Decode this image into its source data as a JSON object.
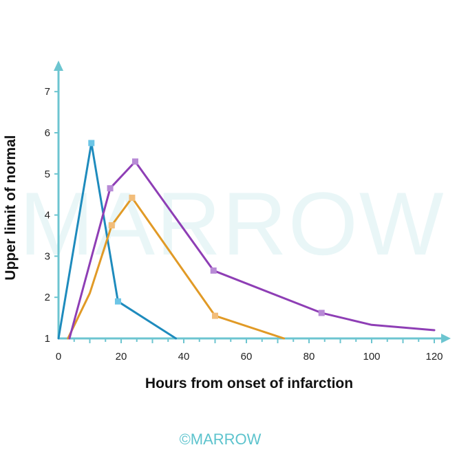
{
  "watermark": "MARROW",
  "footer_logo": "©MARROW",
  "chart_data": {
    "type": "line",
    "xlabel": "Hours from onset of infarction",
    "ylabel": "Upper limit of normal",
    "xlim": [
      0,
      120
    ],
    "ylim": [
      1,
      7
    ],
    "xticks": [
      0,
      20,
      40,
      60,
      80,
      100,
      120
    ],
    "yticks": [
      1,
      2,
      3,
      4,
      5,
      6,
      7
    ],
    "axis_color": "#6cc5d0",
    "series": [
      {
        "color": "#1e8bbd",
        "marker_color": "#6cc5e6",
        "points": [
          [
            0,
            1.0
          ],
          [
            10.5,
            5.75
          ],
          [
            19,
            1.9
          ],
          [
            37.5,
            1.0
          ]
        ],
        "markers": [
          [
            10.5,
            5.75
          ],
          [
            19,
            1.9
          ]
        ]
      },
      {
        "color": "#e19a26",
        "marker_color": "#f2bd7a",
        "points": [
          [
            3,
            1.0
          ],
          [
            10,
            2.1
          ],
          [
            17,
            3.75
          ],
          [
            23.5,
            4.42
          ],
          [
            50,
            1.55
          ],
          [
            72,
            1.0
          ]
        ],
        "markers": [
          [
            17,
            3.75
          ],
          [
            23.5,
            4.42
          ],
          [
            50,
            1.55
          ]
        ]
      },
      {
        "color": "#8e3eb5",
        "marker_color": "#b88ad6",
        "points": [
          [
            3.5,
            1.0
          ],
          [
            16.5,
            4.65
          ],
          [
            24.5,
            5.3
          ],
          [
            49.5,
            2.65
          ],
          [
            84,
            1.62
          ],
          [
            100,
            1.33
          ],
          [
            120,
            1.2
          ]
        ],
        "markers": [
          [
            16.5,
            4.65
          ],
          [
            24.5,
            5.3
          ],
          [
            49.5,
            2.65
          ],
          [
            84,
            1.62
          ]
        ]
      }
    ]
  }
}
